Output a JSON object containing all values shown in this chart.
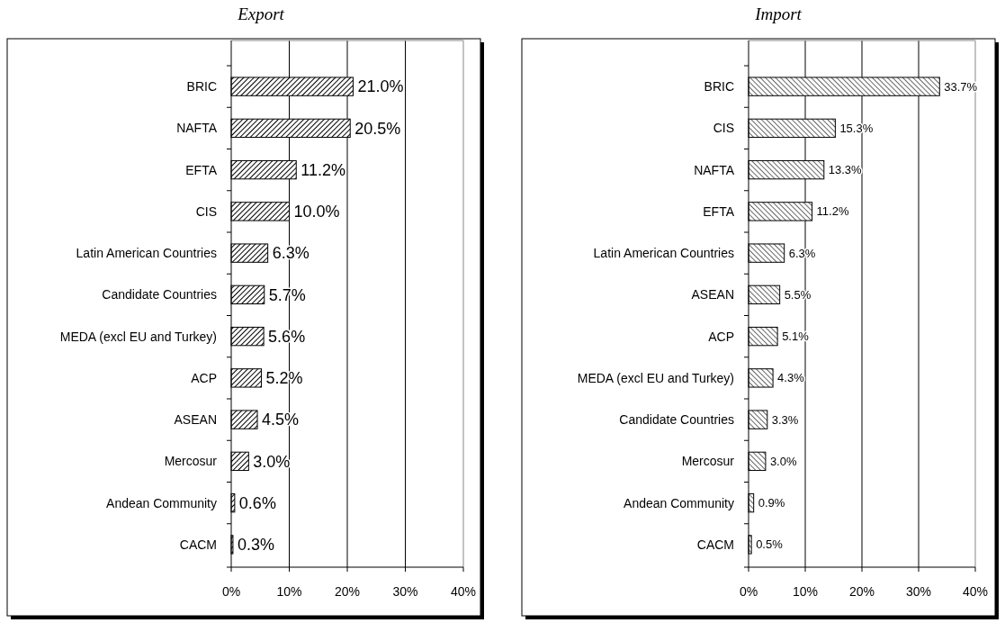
{
  "chart_data": [
    {
      "type": "bar",
      "title": "Export",
      "orientation": "horizontal",
      "categories": [
        "BRIC",
        "NAFTA",
        "EFTA",
        "CIS",
        "Latin American Countries",
        "Candidate Countries",
        "MEDA (excl EU and Turkey)",
        "ACP",
        "ASEAN",
        "Mercosur",
        "Andean Community",
        "CACM"
      ],
      "values": [
        21.0,
        20.5,
        11.2,
        10.0,
        6.3,
        5.7,
        5.6,
        5.2,
        4.5,
        3.0,
        0.6,
        0.3
      ],
      "value_labels": [
        "21.0%",
        "20.5%",
        "11.2%",
        "10.0%",
        "6.3%",
        "5.7%",
        "5.6%",
        "5.2%",
        "4.5%",
        "3.0%",
        "0.6%",
        "0.3%"
      ],
      "color": "#000000",
      "xlim": [
        0,
        40
      ],
      "xticks": [
        {
          "value": 0,
          "label": "0%"
        },
        {
          "value": 10,
          "label": "10%"
        },
        {
          "value": 20,
          "label": "20%"
        },
        {
          "value": 30,
          "label": "30%"
        },
        {
          "value": 40,
          "label": "40%"
        }
      ],
      "grid": "x"
    },
    {
      "type": "bar",
      "title": "Import",
      "orientation": "horizontal",
      "categories": [
        "BRIC",
        "CIS",
        "NAFTA",
        "EFTA",
        "Latin American Countries",
        "ASEAN",
        "ACP",
        "MEDA (excl EU and Turkey)",
        "Candidate Countries",
        "Mercosur",
        "Andean Community",
        "CACM"
      ],
      "values": [
        33.7,
        15.3,
        13.3,
        11.2,
        6.3,
        5.5,
        5.1,
        4.3,
        3.3,
        3.0,
        0.9,
        0.5
      ],
      "value_labels": [
        "33.7%",
        "15.3%",
        "13.3%",
        "11.2%",
        "6.3%",
        "5.5%",
        "5.1%",
        "4.3%",
        "3.3%",
        "3.0%",
        "0.9%",
        "0.5%"
      ],
      "color": "#000000",
      "xlim": [
        0,
        40
      ],
      "xticks": [
        {
          "value": 0,
          "label": "0%"
        },
        {
          "value": 10,
          "label": "10%"
        },
        {
          "value": 20,
          "label": "20%"
        },
        {
          "value": 30,
          "label": "30%"
        },
        {
          "value": 40,
          "label": "40%"
        }
      ],
      "grid": "x"
    }
  ]
}
